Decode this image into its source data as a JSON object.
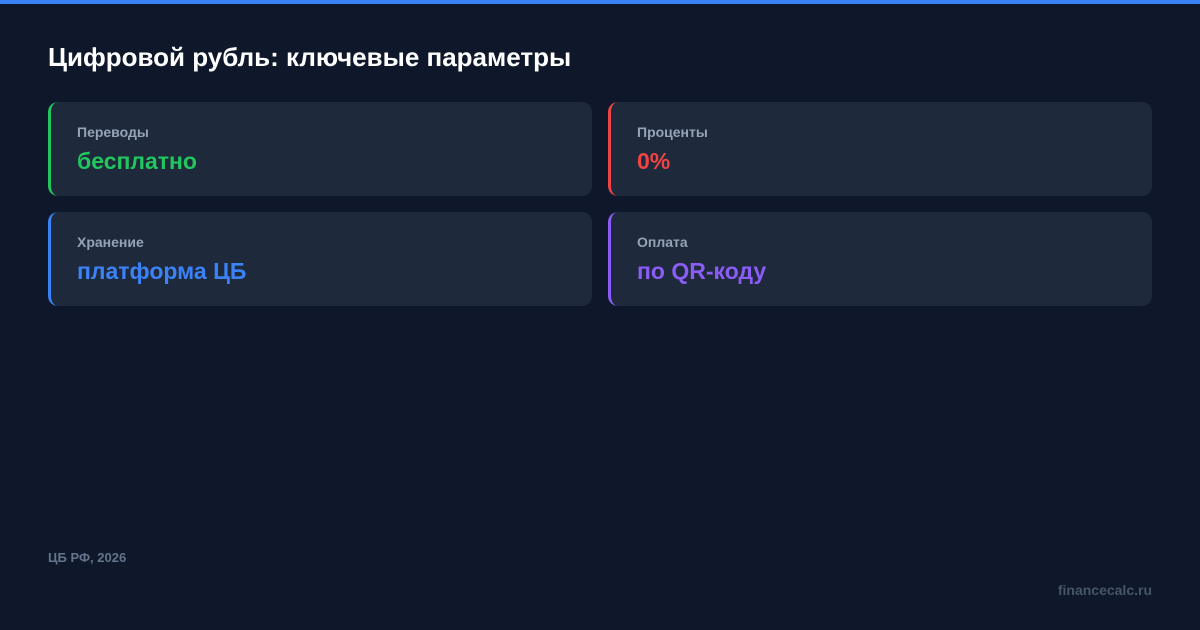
{
  "title": "Цифровой рубль: ключевые параметры",
  "cards": [
    {
      "label": "Переводы",
      "value": "бесплатно",
      "color": "#22c55e"
    },
    {
      "label": "Проценты",
      "value": "0%",
      "color": "#ef4444"
    },
    {
      "label": "Хранение",
      "value": "платформа ЦБ",
      "color": "#3b82f6"
    },
    {
      "label": "Оплата",
      "value": "по QR-коду",
      "color": "#8b5cf6"
    }
  ],
  "source": "ЦБ РФ, 2026",
  "brand": "financecalc.ru",
  "accent": "#3b82f6"
}
